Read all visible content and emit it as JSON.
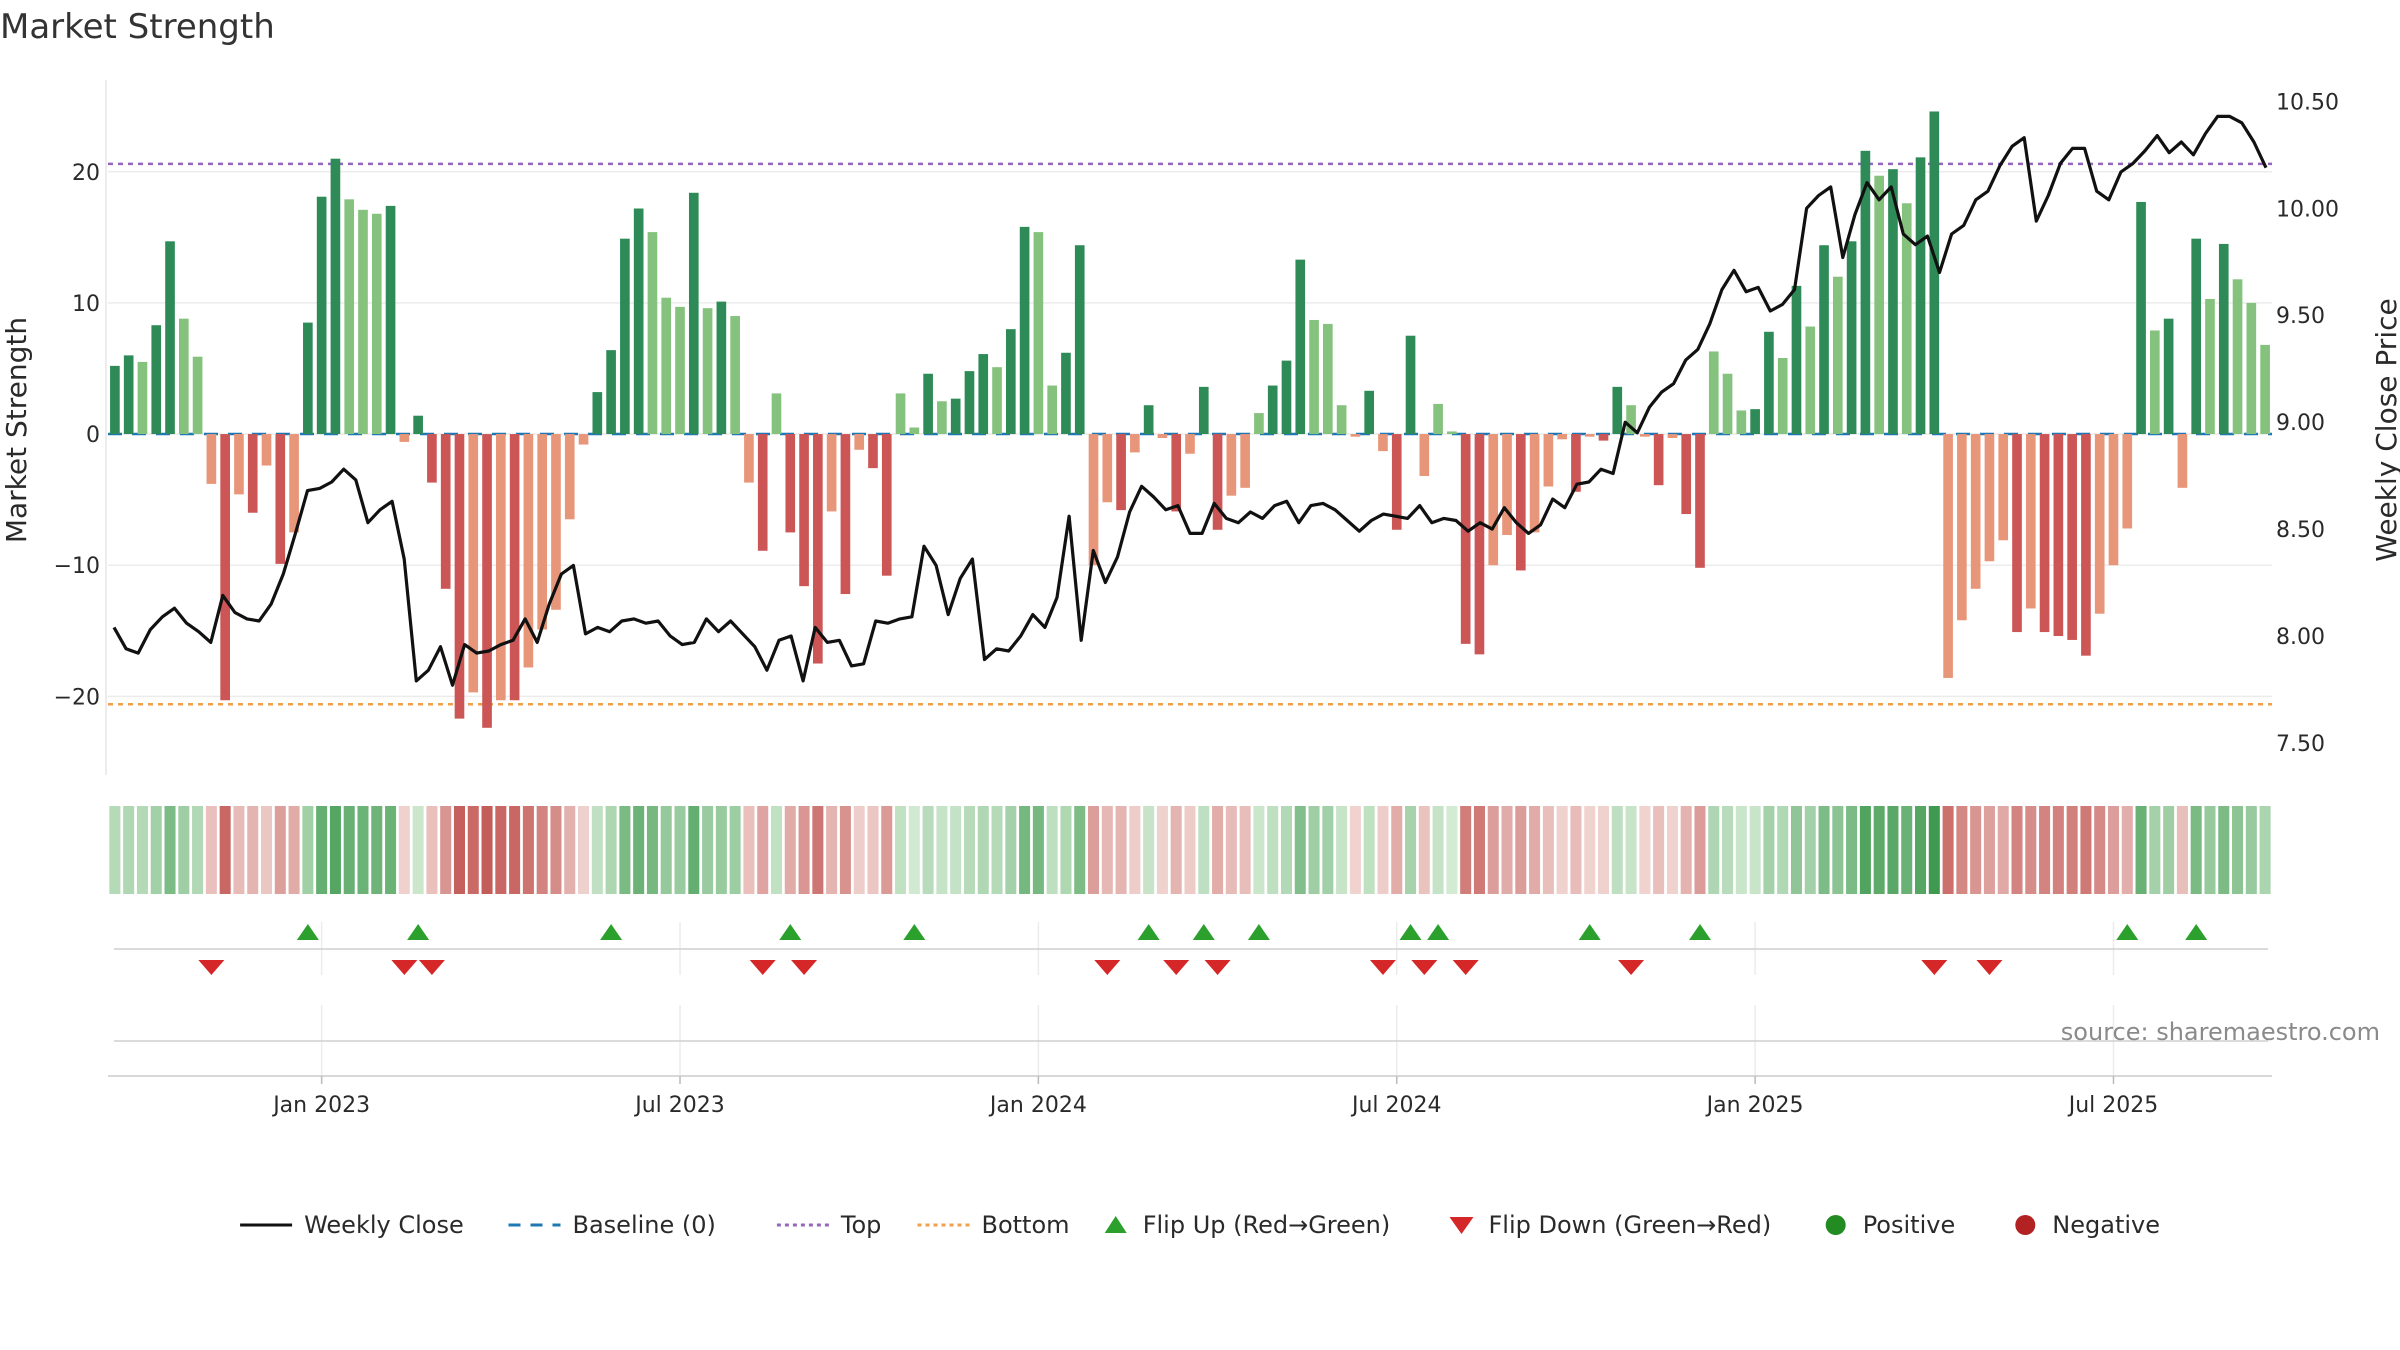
{
  "chart_data": {
    "type": "bar",
    "title": "Market Strength",
    "ylabel_left": "Market Strength",
    "ylabel_right": "Weekly Close Price",
    "ylim_left": [
      -26,
      27
    ],
    "yticks_left": [
      20,
      10,
      0,
      -10,
      -20
    ],
    "ytick_labels_left": [
      "20",
      "10",
      "0",
      "−10",
      "−20"
    ],
    "ylim_right": [
      7.35,
      10.6
    ],
    "yticks_right": [
      10.5,
      10.0,
      9.5,
      9.0,
      8.5,
      8.0,
      7.5
    ],
    "ytick_labels_right": [
      "10.50",
      "10.00",
      "9.50",
      "9.00",
      "8.50",
      "8.00",
      "7.50"
    ],
    "top_line": 20.6,
    "bottom_line": -20.6,
    "baseline": 0,
    "x_start_week": -15,
    "x_end_week": 141,
    "xtick_weeks": [
      0,
      26,
      52,
      78,
      104,
      130
    ],
    "xtick_labels": [
      "Jan 2023",
      "Jul 2023",
      "Jan 2024",
      "Jul 2024",
      "Jan 2025",
      "Jul 2025"
    ],
    "strength_values": [
      5.2,
      6,
      5.5,
      8.3,
      14.7,
      8.8,
      5.9,
      -3.8,
      -20.3,
      -4.6,
      -6,
      -2.4,
      -9.9,
      -7.5,
      8.5,
      18.1,
      21,
      17.9,
      17.1,
      16.8,
      17.4,
      -0.6,
      1.4,
      -3.7,
      -11.8,
      -21.7,
      -19.7,
      -22.4,
      -20.3,
      -20.3,
      -17.8,
      -14.9,
      -13.4,
      -6.5,
      -0.8,
      3.2,
      6.4,
      14.9,
      17.2,
      15.4,
      10.4,
      9.7,
      18.4,
      9.6,
      10.1,
      9,
      -3.7,
      -8.9,
      3.1,
      -7.5,
      -11.6,
      -17.5,
      -5.9,
      -12.2,
      -1.2,
      -2.6,
      -10.8,
      3.1,
      0.5,
      4.6,
      2.5,
      2.7,
      4.8,
      6.1,
      5.1,
      8,
      15.8,
      15.4,
      3.7,
      6.2,
      14.4,
      -10,
      -5.2,
      -5.8,
      -1.4,
      2.2,
      -0.3,
      -5.9,
      -1.5,
      3.6,
      -7.3,
      -4.7,
      -4.1,
      1.6,
      3.7,
      5.6,
      13.3,
      8.7,
      8.4,
      2.2,
      -0.2,
      3.3,
      -1.3,
      -7.3,
      7.5,
      -3.2,
      2.3,
      0.2,
      -16,
      -16.8,
      -10,
      -7.7,
      -10.4,
      -7.5,
      -4,
      -0.4,
      -4.4,
      -0.2,
      -0.5,
      3.6,
      2.2,
      -0.2,
      -3.9,
      -0.3,
      -6.1,
      -10.2,
      6.3,
      4.6,
      1.8,
      1.9,
      7.8,
      5.8,
      11.3,
      8.2,
      14.4,
      12,
      14.7,
      21.6,
      19.7,
      20.2,
      17.6,
      21.1,
      24.6,
      -18.6,
      -14.2,
      -11.8,
      -9.7,
      -8.1,
      -15.1,
      -13.3,
      -15.1,
      -15.4,
      -15.7,
      -16.9,
      -13.7,
      -10,
      -7.2,
      17.7,
      7.9,
      8.8,
      -4.1,
      14.9,
      10.3,
      14.5,
      11.8,
      10,
      6.8
    ],
    "weekly_close": [
      8.04,
      7.94,
      7.92,
      8.03,
      8.09,
      8.13,
      8.06,
      8.02,
      7.97,
      8.19,
      8.11,
      8.08,
      8.07,
      8.15,
      8.29,
      8.48,
      8.68,
      8.69,
      8.72,
      8.78,
      8.73,
      8.53,
      8.59,
      8.63,
      8.36,
      7.79,
      7.84,
      7.95,
      7.77,
      7.96,
      7.92,
      7.93,
      7.96,
      7.98,
      8.08,
      7.97,
      8.15,
      8.29,
      8.33,
      8.01,
      8.04,
      8.02,
      8.07,
      8.08,
      8.06,
      8.07,
      8.0,
      7.96,
      7.97,
      8.08,
      8.02,
      8.07,
      8.01,
      7.95,
      7.84,
      7.98,
      8.0,
      7.79,
      8.04,
      7.97,
      7.98,
      7.86,
      7.87,
      8.07,
      8.06,
      8.08,
      8.09,
      8.42,
      8.33,
      8.1,
      8.27,
      8.36,
      7.89,
      7.94,
      7.93,
      8.0,
      8.1,
      8.04,
      8.18,
      8.56,
      7.98,
      8.4,
      8.25,
      8.37,
      8.58,
      8.7,
      8.65,
      8.59,
      8.61,
      8.48,
      8.48,
      8.62,
      8.55,
      8.53,
      8.58,
      8.55,
      8.61,
      8.63,
      8.53,
      8.61,
      8.62,
      8.59,
      8.54,
      8.49,
      8.54,
      8.57,
      8.56,
      8.55,
      8.61,
      8.53,
      8.55,
      8.54,
      8.49,
      8.53,
      8.5,
      8.6,
      8.53,
      8.48,
      8.52,
      8.64,
      8.6,
      8.71,
      8.72,
      8.78,
      8.76,
      9.0,
      8.95,
      9.07,
      9.14,
      9.18,
      9.29,
      9.34,
      9.46,
      9.62,
      9.71,
      9.61,
      9.63,
      9.52,
      9.55,
      9.62,
      10.0,
      10.06,
      10.1,
      9.77,
      9.97,
      10.12,
      10.04,
      10.1,
      9.88,
      9.83,
      9.87,
      9.7,
      9.88,
      9.92,
      10.04,
      10.08,
      10.2,
      10.29,
      10.33,
      9.94,
      10.06,
      10.21,
      10.28,
      10.28,
      10.08,
      10.04,
      10.17,
      10.21,
      10.27,
      10.34,
      10.26,
      10.31,
      10.25,
      10.35,
      10.43,
      10.43,
      10.4,
      10.31,
      10.19
    ],
    "flip_up_weeks": [
      -1,
      7,
      21,
      34,
      43,
      60,
      64,
      68,
      79,
      81,
      92,
      100,
      131,
      136
    ],
    "flip_down_weeks": [
      -8,
      6,
      8,
      32,
      35,
      57,
      62,
      65,
      77,
      80,
      83,
      95,
      117,
      121
    ],
    "source": "source: sharemaestro.com",
    "legend": [
      {
        "key": "weekly_close",
        "label": "Weekly Close",
        "symbol": "solid-line",
        "color": "#111111"
      },
      {
        "key": "baseline",
        "label": "Baseline (0)",
        "symbol": "dashed-line",
        "color": "#1f77b4"
      },
      {
        "key": "top",
        "label": "Top",
        "symbol": "dotted-line",
        "color": "#9467bd"
      },
      {
        "key": "bottom",
        "label": "Bottom",
        "symbol": "dotted-line",
        "color": "#f0a04b"
      },
      {
        "key": "flip_up",
        "label": "Flip Up (Red→Green)",
        "symbol": "triangle-up",
        "color": "#2ca02c"
      },
      {
        "key": "flip_down",
        "label": "Flip Down (Green→Red)",
        "symbol": "triangle-down",
        "color": "#d62728"
      },
      {
        "key": "positive",
        "label": "Positive",
        "symbol": "circle",
        "color": "#228b22"
      },
      {
        "key": "negative",
        "label": "Negative",
        "symbol": "circle",
        "color": "#b22222"
      }
    ]
  },
  "colors": {
    "pos_dark": "#2e8b57",
    "pos_light": "#85c27e",
    "neg_dark": "#cc5555",
    "neg_light": "#e8967a",
    "price_line": "#111111",
    "baseline": "#1f77b4",
    "top": "#9467bd",
    "bottom": "#f0a04b",
    "flip_up": "#2ca02c",
    "flip_down": "#d62728"
  }
}
